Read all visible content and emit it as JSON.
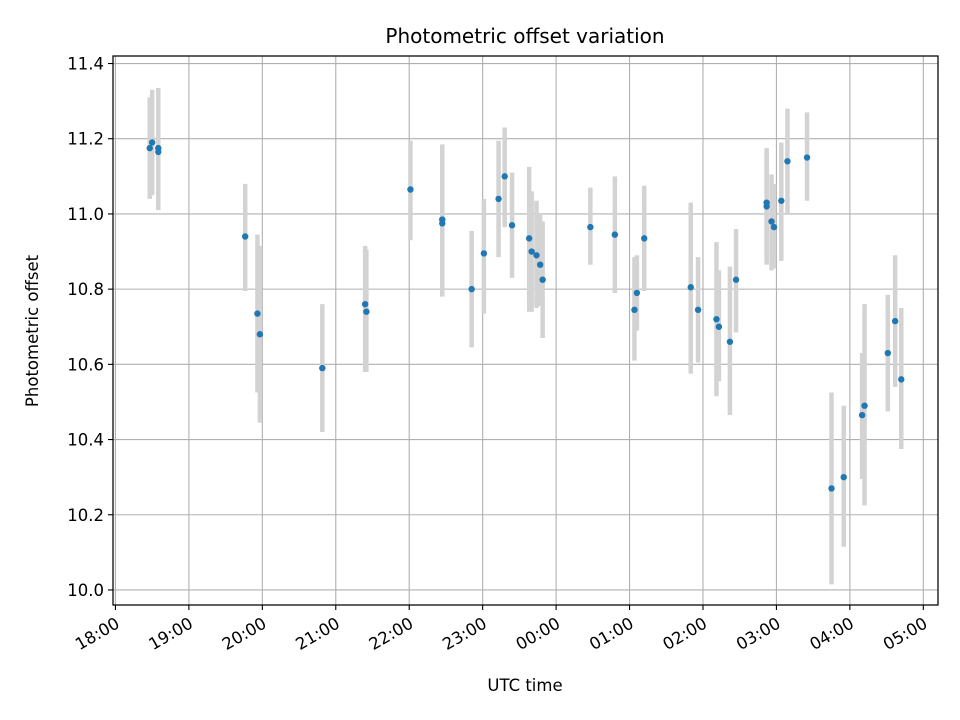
{
  "chart_data": {
    "type": "scatter",
    "title": "Photometric offset variation",
    "xlabel": "UTC time",
    "ylabel": "Photometric offset",
    "grid": true,
    "x_unit": "UTC time (HH:MM), times after midnight belong to the following day",
    "xlim": [
      "17:58",
      "05:12"
    ],
    "ylim": [
      9.96,
      11.42
    ],
    "x_ticks": [
      "18:00",
      "19:00",
      "20:00",
      "21:00",
      "22:00",
      "23:00",
      "00:00",
      "01:00",
      "02:00",
      "03:00",
      "04:00",
      "05:00"
    ],
    "y_ticks": [
      "10.0",
      "10.2",
      "10.4",
      "10.6",
      "10.8",
      "11.0",
      "11.2",
      "11.4"
    ],
    "colors": {
      "point": "#1f77b4",
      "errorbar": "#d3d3d3",
      "grid": "#b0b0b0"
    },
    "points": [
      {
        "x": "18:28",
        "y": 11.175,
        "lo": 11.04,
        "hi": 11.31
      },
      {
        "x": "18:30",
        "y": 11.19,
        "lo": 11.05,
        "hi": 11.33
      },
      {
        "x": "18:35",
        "y": 11.175,
        "lo": 11.01,
        "hi": 11.335
      },
      {
        "x": "18:35",
        "y": 11.165
      },
      {
        "x": "19:46",
        "y": 10.94,
        "lo": 10.795,
        "hi": 11.08
      },
      {
        "x": "19:56",
        "y": 10.735,
        "lo": 10.525,
        "hi": 10.945
      },
      {
        "x": "19:58",
        "y": 10.68,
        "lo": 10.445,
        "hi": 10.915
      },
      {
        "x": "20:49",
        "y": 10.59,
        "lo": 10.42,
        "hi": 10.76
      },
      {
        "x": "21:24",
        "y": 10.76,
        "lo": 10.58,
        "hi": 10.915
      },
      {
        "x": "21:25",
        "y": 10.74,
        "lo": 10.58,
        "hi": 10.905
      },
      {
        "x": "22:01",
        "y": 11.065,
        "lo": 10.93,
        "hi": 11.195
      },
      {
        "x": "22:27",
        "y": 10.985,
        "lo": 10.78,
        "hi": 11.185
      },
      {
        "x": "22:27",
        "y": 10.975
      },
      {
        "x": "22:51",
        "y": 10.8,
        "lo": 10.645,
        "hi": 10.955
      },
      {
        "x": "23:01",
        "y": 10.895,
        "lo": 10.735,
        "hi": 11.04
      },
      {
        "x": "23:13",
        "y": 11.04,
        "lo": 10.885,
        "hi": 11.195
      },
      {
        "x": "23:18",
        "y": 11.1,
        "lo": 10.965,
        "hi": 11.23
      },
      {
        "x": "23:24",
        "y": 10.97,
        "lo": 10.83,
        "hi": 11.11
      },
      {
        "x": "23:38",
        "y": 10.935,
        "lo": 10.74,
        "hi": 11.125
      },
      {
        "x": "23:40",
        "y": 10.9,
        "lo": 10.74,
        "hi": 11.06
      },
      {
        "x": "23:44",
        "y": 10.89,
        "lo": 10.75,
        "hi": 11.035
      },
      {
        "x": "23:47",
        "y": 10.865,
        "lo": 10.755,
        "hi": 11.0
      },
      {
        "x": "23:49",
        "y": 10.825,
        "lo": 10.67,
        "hi": 10.98
      },
      {
        "x": "00:28",
        "y": 10.965,
        "lo": 10.865,
        "hi": 11.07
      },
      {
        "x": "00:48",
        "y": 10.945,
        "lo": 10.79,
        "hi": 11.1
      },
      {
        "x": "01:04",
        "y": 10.745,
        "lo": 10.61,
        "hi": 10.885
      },
      {
        "x": "01:06",
        "y": 10.79,
        "lo": 10.69,
        "hi": 10.89
      },
      {
        "x": "01:12",
        "y": 10.935,
        "lo": 10.795,
        "hi": 11.075
      },
      {
        "x": "01:50",
        "y": 10.805,
        "lo": 10.575,
        "hi": 11.03
      },
      {
        "x": "01:56",
        "y": 10.745,
        "lo": 10.605,
        "hi": 10.885
      },
      {
        "x": "02:11",
        "y": 10.72,
        "lo": 10.515,
        "hi": 10.925
      },
      {
        "x": "02:13",
        "y": 10.7,
        "lo": 10.555,
        "hi": 10.85
      },
      {
        "x": "02:22",
        "y": 10.66,
        "lo": 10.465,
        "hi": 10.86
      },
      {
        "x": "02:27",
        "y": 10.825,
        "lo": 10.685,
        "hi": 10.96
      },
      {
        "x": "02:52",
        "y": 11.03,
        "lo": 10.88,
        "hi": 11.175
      },
      {
        "x": "02:52",
        "y": 11.02,
        "lo": 10.865,
        "hi": 11.165
      },
      {
        "x": "02:56",
        "y": 10.98,
        "lo": 10.85,
        "hi": 11.105
      },
      {
        "x": "02:58",
        "y": 10.965,
        "lo": 10.855,
        "hi": 11.08
      },
      {
        "x": "03:04",
        "y": 11.035,
        "lo": 10.875,
        "hi": 11.19
      },
      {
        "x": "03:09",
        "y": 11.14,
        "lo": 11.0,
        "hi": 11.28
      },
      {
        "x": "03:25",
        "y": 11.15,
        "lo": 11.035,
        "hi": 11.27
      },
      {
        "x": "03:45",
        "y": 10.27,
        "lo": 10.015,
        "hi": 10.525
      },
      {
        "x": "03:55",
        "y": 10.3,
        "lo": 10.115,
        "hi": 10.49
      },
      {
        "x": "04:10",
        "y": 10.465,
        "lo": 10.295,
        "hi": 10.63
      },
      {
        "x": "04:12",
        "y": 10.49,
        "lo": 10.225,
        "hi": 10.76
      },
      {
        "x": "04:31",
        "y": 10.63,
        "lo": 10.475,
        "hi": 10.785
      },
      {
        "x": "04:37",
        "y": 10.715,
        "lo": 10.54,
        "hi": 10.89
      },
      {
        "x": "04:42",
        "y": 10.56,
        "lo": 10.375,
        "hi": 10.75
      }
    ]
  }
}
